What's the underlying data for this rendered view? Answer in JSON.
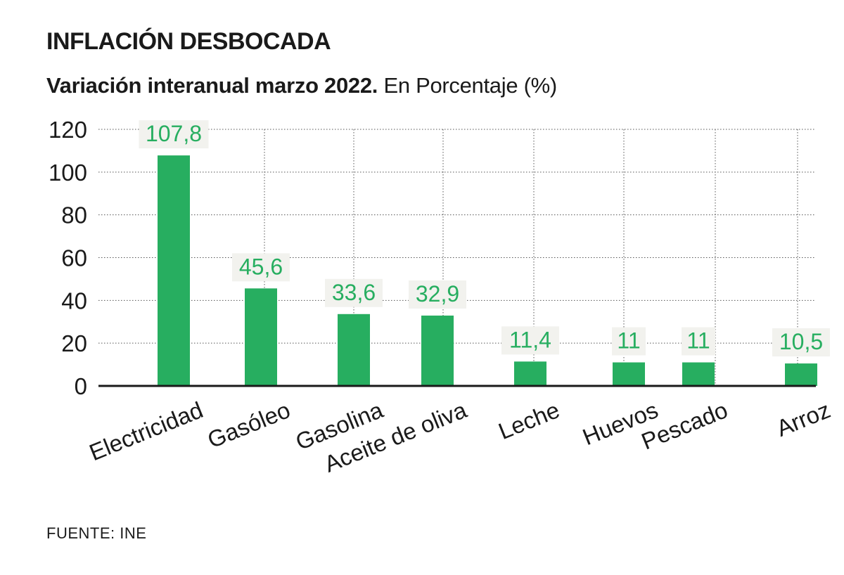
{
  "header": {
    "title": "INFLACIÓN DESBOCADA",
    "subtitle_bold": "Variación interanual marzo 2022.",
    "subtitle_rest": " En Porcentaje (%)"
  },
  "source": "FUENTE: INE",
  "colors": {
    "bar": "#27ae60",
    "label": "#27ae60",
    "label_bg": "#f2f2ee",
    "grid": "#555555",
    "axis": "#1a1a1a",
    "text": "#1a1a1a"
  },
  "chart_data": {
    "type": "bar",
    "categories": [
      "Electricidad",
      "Gasóleo",
      "Gasolina",
      "Aceite de oliva",
      "Leche",
      "Huevos",
      "Pescado",
      "Arroz"
    ],
    "values": [
      107.8,
      45.6,
      33.6,
      32.9,
      11.4,
      11,
      11,
      10.5
    ],
    "value_labels": [
      "107,8",
      "45,6",
      "33,6",
      "32,9",
      "11,4",
      "11",
      "11",
      "10,5"
    ],
    "ylim": [
      0,
      120
    ],
    "yticks": [
      0,
      20,
      40,
      60,
      80,
      100,
      120
    ],
    "grid": true,
    "xlabel": "",
    "ylabel": ""
  }
}
